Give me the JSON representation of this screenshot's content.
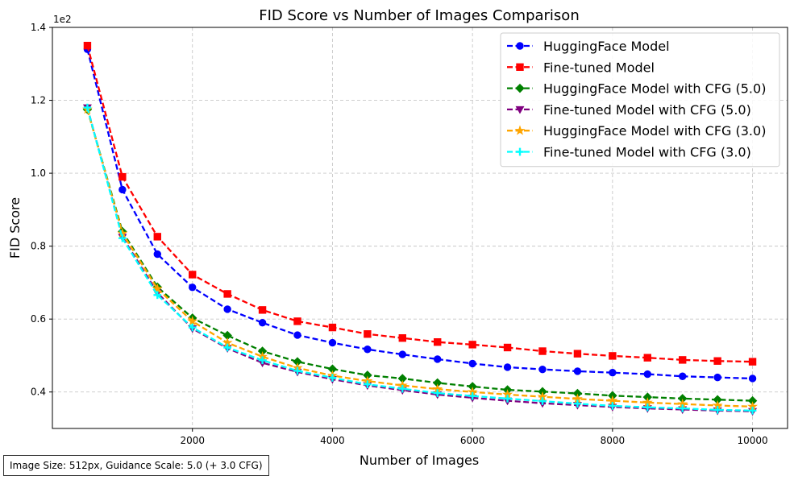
{
  "chart_data": {
    "type": "line",
    "title": "FID Score vs Number of Images Comparison",
    "xlabel": "Number of Images",
    "ylabel": "FID Score",
    "y_offset_label": "1e2",
    "xlim": [
      0,
      10500
    ],
    "ylim": [
      0.3,
      1.4
    ],
    "x_ticks": [
      2000,
      4000,
      6000,
      8000,
      10000
    ],
    "x_tick_labels": [
      "2000",
      "4000",
      "6000",
      "8000",
      "10000"
    ],
    "y_ticks": [
      0.4,
      0.6,
      0.8,
      1.0,
      1.2,
      1.4
    ],
    "y_tick_labels": [
      "0.4",
      "0.6",
      "0.8",
      "1.0",
      "1.2",
      "1.4"
    ],
    "grid": true,
    "legend_position": "top-right",
    "x": [
      500,
      1000,
      1500,
      2000,
      2500,
      3000,
      3500,
      4000,
      4500,
      5000,
      5500,
      6000,
      6500,
      7000,
      7500,
      8000,
      8500,
      9000,
      9500,
      10000
    ],
    "series": [
      {
        "name": "HuggingFace Model",
        "color": "#0000ff",
        "marker": "circle",
        "values": [
          1.34,
          0.955,
          0.778,
          0.687,
          0.627,
          0.59,
          0.556,
          0.535,
          0.517,
          0.503,
          0.49,
          0.478,
          0.468,
          0.462,
          0.457,
          0.453,
          0.449,
          0.443,
          0.44,
          0.437
        ]
      },
      {
        "name": "Fine-tuned Model",
        "color": "#ff0000",
        "marker": "square",
        "values": [
          1.35,
          0.99,
          0.826,
          0.722,
          0.669,
          0.625,
          0.594,
          0.577,
          0.559,
          0.548,
          0.537,
          0.53,
          0.522,
          0.512,
          0.505,
          0.499,
          0.494,
          0.488,
          0.485,
          0.483
        ]
      },
      {
        "name": "HuggingFace Model with CFG (5.0)",
        "color": "#008000",
        "marker": "diamond",
        "values": [
          1.175,
          0.84,
          0.688,
          0.603,
          0.555,
          0.512,
          0.483,
          0.463,
          0.446,
          0.437,
          0.425,
          0.415,
          0.406,
          0.401,
          0.396,
          0.39,
          0.386,
          0.382,
          0.379,
          0.376
        ]
      },
      {
        "name": "Fine-tuned Model with CFG (5.0)",
        "color": "#800080",
        "marker": "triangle-down",
        "values": [
          1.18,
          0.825,
          0.672,
          0.574,
          0.52,
          0.48,
          0.455,
          0.435,
          0.418,
          0.405,
          0.393,
          0.384,
          0.376,
          0.369,
          0.364,
          0.359,
          0.355,
          0.352,
          0.349,
          0.347
        ]
      },
      {
        "name": "HuggingFace Model with CFG (3.0)",
        "color": "#ffa500",
        "marker": "star",
        "values": [
          1.175,
          0.835,
          0.683,
          0.594,
          0.535,
          0.497,
          0.466,
          0.445,
          0.43,
          0.418,
          0.408,
          0.4,
          0.393,
          0.387,
          0.381,
          0.376,
          0.371,
          0.367,
          0.363,
          0.36
        ]
      },
      {
        "name": "Fine-tuned Model with CFG (3.0)",
        "color": "#00ffff",
        "marker": "plus",
        "values": [
          1.18,
          0.822,
          0.666,
          0.577,
          0.522,
          0.487,
          0.458,
          0.439,
          0.421,
          0.409,
          0.397,
          0.389,
          0.382,
          0.375,
          0.368,
          0.362,
          0.358,
          0.355,
          0.351,
          0.349
        ]
      }
    ]
  },
  "footnote": "Image Size: 512px, Guidance Scale: 5.0 (+ 3.0 CFG)"
}
